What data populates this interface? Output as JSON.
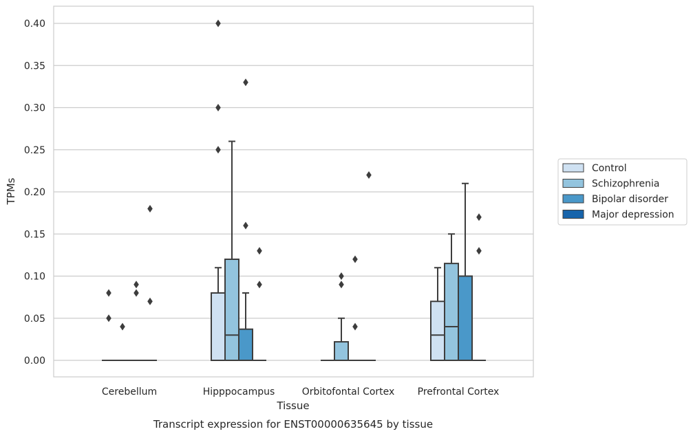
{
  "chart_data": {
    "type": "box",
    "xlabel": "Tissue",
    "ylabel": "TPMs",
    "caption": "Transcript expression for ENST00000635645 by tissue",
    "ylim": [
      -0.02,
      0.42
    ],
    "yticks": [
      0.0,
      0.05,
      0.1,
      0.15,
      0.2,
      0.25,
      0.3,
      0.35,
      0.4
    ],
    "ytick_labels": [
      "0.00",
      "0.05",
      "0.10",
      "0.15",
      "0.20",
      "0.25",
      "0.30",
      "0.35",
      "0.40"
    ],
    "grid": "horizontal",
    "legend_position": "right",
    "categories": [
      "Cerebellum",
      "Hipppocampus",
      "Orbitofontal Cortex",
      "Prefrontal Cortex"
    ],
    "series": [
      {
        "name": "Control",
        "color": "#cfe1f2"
      },
      {
        "name": "Schizophrenia",
        "color": "#93c4de"
      },
      {
        "name": "Bipolar disorder",
        "color": "#4a98c9"
      },
      {
        "name": "Major depression",
        "color": "#1764ab"
      }
    ],
    "boxes": [
      [
        {
          "q1": 0,
          "median": 0,
          "q3": 0,
          "whislo": 0,
          "whishi": 0,
          "fliers": [
            0.05,
            0.08
          ]
        },
        {
          "q1": 0,
          "median": 0,
          "q3": 0,
          "whislo": 0,
          "whishi": 0,
          "fliers": [
            0.04
          ]
        },
        {
          "q1": 0,
          "median": 0,
          "q3": 0,
          "whislo": 0,
          "whishi": 0,
          "fliers": [
            0.08,
            0.09
          ]
        },
        {
          "q1": 0,
          "median": 0,
          "q3": 0,
          "whislo": 0,
          "whishi": 0,
          "fliers": [
            0.07,
            0.18
          ]
        }
      ],
      [
        {
          "q1": 0,
          "median": 0,
          "q3": 0.08,
          "whislo": 0,
          "whishi": 0.11,
          "fliers": [
            0.25,
            0.3,
            0.4
          ]
        },
        {
          "q1": 0,
          "median": 0.03,
          "q3": 0.12,
          "whislo": 0,
          "whishi": 0.26,
          "fliers": []
        },
        {
          "q1": 0,
          "median": 0,
          "q3": 0.037,
          "whislo": 0,
          "whishi": 0.08,
          "fliers": [
            0.16,
            0.33
          ]
        },
        {
          "q1": 0,
          "median": 0,
          "q3": 0,
          "whislo": 0,
          "whishi": 0,
          "fliers": [
            0.09,
            0.13
          ]
        }
      ],
      [
        {
          "q1": 0,
          "median": 0,
          "q3": 0,
          "whislo": 0,
          "whishi": 0,
          "fliers": []
        },
        {
          "q1": 0,
          "median": 0,
          "q3": 0.022,
          "whislo": 0,
          "whishi": 0.05,
          "fliers": [
            0.09,
            0.1
          ]
        },
        {
          "q1": 0,
          "median": 0,
          "q3": 0,
          "whislo": 0,
          "whishi": 0,
          "fliers": [
            0.04,
            0.12
          ]
        },
        {
          "q1": 0,
          "median": 0,
          "q3": 0,
          "whislo": 0,
          "whishi": 0,
          "fliers": [
            0.22
          ]
        }
      ],
      [
        {
          "q1": 0,
          "median": 0.03,
          "q3": 0.07,
          "whislo": 0,
          "whishi": 0.11,
          "fliers": []
        },
        {
          "q1": 0,
          "median": 0.04,
          "q3": 0.115,
          "whislo": 0,
          "whishi": 0.15,
          "fliers": []
        },
        {
          "q1": 0,
          "median": 0,
          "q3": 0.1,
          "whislo": 0,
          "whishi": 0.21,
          "fliers": []
        },
        {
          "q1": 0,
          "median": 0,
          "q3": 0,
          "whislo": 0,
          "whishi": 0,
          "fliers": [
            0.13,
            0.17
          ]
        }
      ]
    ]
  }
}
